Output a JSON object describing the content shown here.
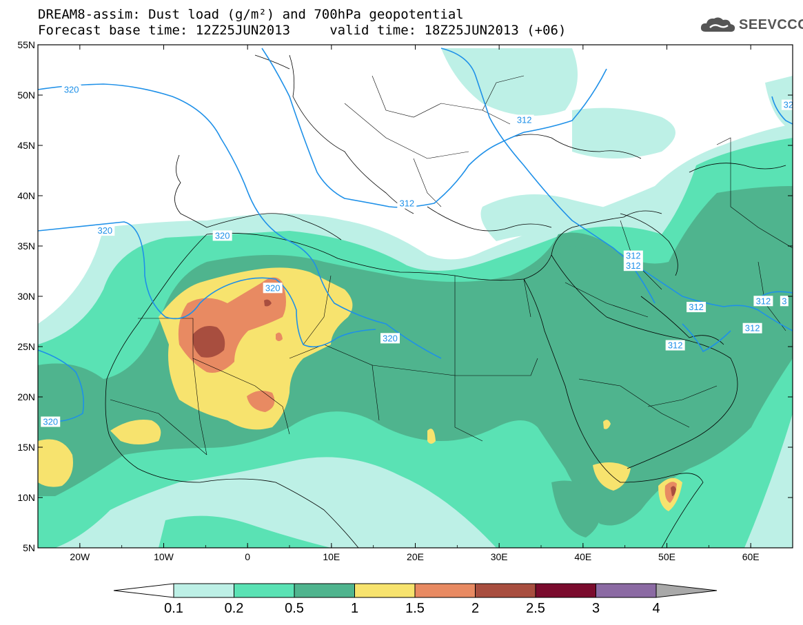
{
  "header": {
    "line1": "DREAM8-assim: Dust load (g/m²) and 700hPa geopotential",
    "line2": "Forecast base time: 12Z25JUN2013     valid time: 18Z25JUN2013 (+06)"
  },
  "logo": {
    "text": "SEEVCCC",
    "icon": "cloud-icon",
    "color": "#555555"
  },
  "map": {
    "lon_range": [
      -25,
      65
    ],
    "lat_range": [
      5,
      55
    ],
    "lat_ticks": [
      "5N",
      "10N",
      "15N",
      "20N",
      "25N",
      "30N",
      "35N",
      "40N",
      "45N",
      "50N",
      "55N"
    ],
    "lon_ticks": [
      "20W",
      "10W",
      "0",
      "10E",
      "20E",
      "30E",
      "40E",
      "50E",
      "60E"
    ],
    "contour_labels": [
      {
        "text": "320",
        "lon": -21,
        "lat": 50.5
      },
      {
        "text": "320",
        "lon": -17,
        "lat": 36.5
      },
      {
        "text": "320",
        "lon": -3,
        "lat": 36
      },
      {
        "text": "320",
        "lon": 3,
        "lat": 30.8
      },
      {
        "text": "320",
        "lon": 17,
        "lat": 25.8
      },
      {
        "text": "320",
        "lon": -23.5,
        "lat": 17.5
      },
      {
        "text": "312",
        "lon": 33,
        "lat": 47.5
      },
      {
        "text": "312",
        "lon": 19,
        "lat": 39.2
      },
      {
        "text": "312",
        "lon": 46,
        "lat": 34
      },
      {
        "text": "312",
        "lon": 46,
        "lat": 33
      },
      {
        "text": "312",
        "lon": 53.5,
        "lat": 28.9
      },
      {
        "text": "312",
        "lon": 51,
        "lat": 25.1
      },
      {
        "text": "312",
        "lon": 60.2,
        "lat": 26.8
      },
      {
        "text": "312",
        "lon": 61.5,
        "lat": 29.5
      },
      {
        "text": "3",
        "lon": 64,
        "lat": 29.5
      },
      {
        "text": "32",
        "lon": 64.5,
        "lat": 49
      }
    ],
    "colors": {
      "c0": "#bdf0e6",
      "c1": "#5ae2b4",
      "c2": "#4fb48e",
      "c3": "#f7e36e",
      "c4": "#e88a62",
      "c5": "#a84e3f",
      "c6": "#7a0b2d",
      "c7": "#8b6aa3",
      "c8": "#a9a9a9",
      "contour": "#1e90e8"
    }
  },
  "colorbar": {
    "labels": [
      "0.1",
      "0.2",
      "0.5",
      "1",
      "1.5",
      "2",
      "2.5",
      "3",
      "4"
    ],
    "colors": [
      "#bdf0e6",
      "#5ae2b4",
      "#4fb48e",
      "#f7e36e",
      "#e88a62",
      "#a84e3f",
      "#7a0b2d",
      "#8b6aa3"
    ]
  }
}
